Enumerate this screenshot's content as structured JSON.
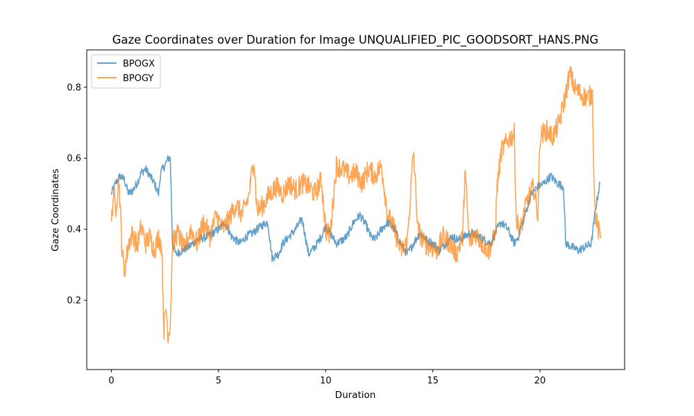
{
  "chart_data": {
    "type": "line",
    "title": "Gaze Coordinates over Duration for Image UNQUALIFIED_PIC_GOODSORT_HANS.PNG",
    "xlabel": "Duration",
    "ylabel": "Gaze Coordinates",
    "xlim": [
      -1.15,
      23.95
    ],
    "ylim": [
      0.005,
      0.905
    ],
    "xticks": [
      0,
      5,
      10,
      15,
      20
    ],
    "yticks": [
      0.2,
      0.4,
      0.6,
      0.8
    ],
    "grid": false,
    "legend_position": "top-left",
    "series": [
      {
        "name": "BPOGX",
        "color": "#1f77b4",
        "opacity": 0.7,
        "points": [
          [
            0.0,
            0.5
          ],
          [
            0.2,
            0.53
          ],
          [
            0.4,
            0.55
          ],
          [
            0.6,
            0.54
          ],
          [
            0.8,
            0.5
          ],
          [
            1.0,
            0.51
          ],
          [
            1.2,
            0.53
          ],
          [
            1.4,
            0.56
          ],
          [
            1.6,
            0.57
          ],
          [
            1.8,
            0.55
          ],
          [
            2.0,
            0.53
          ],
          [
            2.2,
            0.5
          ],
          [
            2.3,
            0.56
          ],
          [
            2.5,
            0.58
          ],
          [
            2.65,
            0.6
          ],
          [
            2.75,
            0.6
          ],
          [
            2.85,
            0.36
          ],
          [
            3.0,
            0.33
          ],
          [
            3.3,
            0.34
          ],
          [
            3.6,
            0.35
          ],
          [
            4.0,
            0.37
          ],
          [
            4.5,
            0.38
          ],
          [
            5.0,
            0.4
          ],
          [
            5.3,
            0.42
          ],
          [
            5.6,
            0.38
          ],
          [
            6.0,
            0.36
          ],
          [
            6.3,
            0.38
          ],
          [
            6.6,
            0.39
          ],
          [
            7.0,
            0.41
          ],
          [
            7.3,
            0.42
          ],
          [
            7.5,
            0.32
          ],
          [
            7.8,
            0.33
          ],
          [
            8.0,
            0.36
          ],
          [
            8.3,
            0.38
          ],
          [
            8.6,
            0.4
          ],
          [
            8.9,
            0.43
          ],
          [
            9.2,
            0.33
          ],
          [
            9.5,
            0.35
          ],
          [
            9.8,
            0.38
          ],
          [
            10.0,
            0.41
          ],
          [
            10.2,
            0.39
          ],
          [
            10.5,
            0.36
          ],
          [
            10.8,
            0.37
          ],
          [
            11.0,
            0.38
          ],
          [
            11.3,
            0.42
          ],
          [
            11.6,
            0.44
          ],
          [
            11.9,
            0.41
          ],
          [
            12.1,
            0.38
          ],
          [
            12.3,
            0.37
          ],
          [
            12.6,
            0.4
          ],
          [
            12.9,
            0.42
          ],
          [
            13.2,
            0.4
          ],
          [
            13.5,
            0.36
          ],
          [
            13.8,
            0.33
          ],
          [
            14.1,
            0.36
          ],
          [
            14.4,
            0.39
          ],
          [
            14.7,
            0.37
          ],
          [
            15.0,
            0.36
          ],
          [
            15.3,
            0.34
          ],
          [
            15.6,
            0.36
          ],
          [
            15.9,
            0.38
          ],
          [
            16.2,
            0.37
          ],
          [
            16.5,
            0.38
          ],
          [
            16.8,
            0.39
          ],
          [
            17.1,
            0.38
          ],
          [
            17.4,
            0.37
          ],
          [
            17.7,
            0.36
          ],
          [
            18.0,
            0.4
          ],
          [
            18.2,
            0.42
          ],
          [
            18.5,
            0.4
          ],
          [
            18.8,
            0.36
          ],
          [
            19.0,
            0.38
          ],
          [
            19.3,
            0.44
          ],
          [
            19.6,
            0.5
          ],
          [
            19.9,
            0.52
          ],
          [
            20.2,
            0.53
          ],
          [
            20.5,
            0.55
          ],
          [
            20.8,
            0.53
          ],
          [
            21.1,
            0.52
          ],
          [
            21.2,
            0.36
          ],
          [
            21.5,
            0.35
          ],
          [
            21.8,
            0.34
          ],
          [
            22.1,
            0.35
          ],
          [
            22.4,
            0.36
          ],
          [
            22.6,
            0.46
          ],
          [
            22.8,
            0.53
          ]
        ]
      },
      {
        "name": "BPOGY",
        "color": "#ff7f0e",
        "opacity": 0.7,
        "points": [
          [
            0.0,
            0.42
          ],
          [
            0.1,
            0.5
          ],
          [
            0.2,
            0.46
          ],
          [
            0.35,
            0.54
          ],
          [
            0.5,
            0.34
          ],
          [
            0.6,
            0.28
          ],
          [
            0.8,
            0.36
          ],
          [
            1.0,
            0.39
          ],
          [
            1.2,
            0.35
          ],
          [
            1.4,
            0.41
          ],
          [
            1.6,
            0.36
          ],
          [
            1.8,
            0.38
          ],
          [
            2.0,
            0.34
          ],
          [
            2.2,
            0.38
          ],
          [
            2.35,
            0.35
          ],
          [
            2.45,
            0.12
          ],
          [
            2.55,
            0.18
          ],
          [
            2.65,
            0.1
          ],
          [
            2.75,
            0.14
          ],
          [
            2.85,
            0.36
          ],
          [
            3.1,
            0.39
          ],
          [
            3.4,
            0.34
          ],
          [
            3.7,
            0.4
          ],
          [
            4.0,
            0.36
          ],
          [
            4.3,
            0.42
          ],
          [
            4.6,
            0.38
          ],
          [
            4.9,
            0.44
          ],
          [
            5.2,
            0.4
          ],
          [
            5.5,
            0.43
          ],
          [
            5.8,
            0.47
          ],
          [
            6.1,
            0.44
          ],
          [
            6.4,
            0.49
          ],
          [
            6.65,
            0.6
          ],
          [
            6.8,
            0.45
          ],
          [
            7.1,
            0.47
          ],
          [
            7.4,
            0.5
          ],
          [
            7.7,
            0.52
          ],
          [
            8.0,
            0.5
          ],
          [
            8.3,
            0.53
          ],
          [
            8.6,
            0.51
          ],
          [
            8.9,
            0.53
          ],
          [
            9.2,
            0.52
          ],
          [
            9.5,
            0.5
          ],
          [
            9.8,
            0.54
          ],
          [
            10.0,
            0.4
          ],
          [
            10.2,
            0.38
          ],
          [
            10.5,
            0.58
          ],
          [
            10.8,
            0.57
          ],
          [
            11.1,
            0.55
          ],
          [
            11.4,
            0.56
          ],
          [
            11.7,
            0.53
          ],
          [
            12.0,
            0.57
          ],
          [
            12.3,
            0.55
          ],
          [
            12.6,
            0.58
          ],
          [
            12.9,
            0.44
          ],
          [
            13.2,
            0.4
          ],
          [
            13.5,
            0.34
          ],
          [
            13.8,
            0.36
          ],
          [
            14.1,
            0.62
          ],
          [
            14.3,
            0.4
          ],
          [
            14.6,
            0.36
          ],
          [
            14.9,
            0.35
          ],
          [
            15.2,
            0.34
          ],
          [
            15.5,
            0.38
          ],
          [
            15.8,
            0.36
          ],
          [
            16.1,
            0.33
          ],
          [
            16.4,
            0.38
          ],
          [
            16.5,
            0.57
          ],
          [
            16.7,
            0.36
          ],
          [
            17.0,
            0.39
          ],
          [
            17.3,
            0.36
          ],
          [
            17.6,
            0.34
          ],
          [
            17.9,
            0.38
          ],
          [
            18.0,
            0.52
          ],
          [
            18.2,
            0.62
          ],
          [
            18.5,
            0.65
          ],
          [
            18.8,
            0.67
          ],
          [
            18.9,
            0.42
          ],
          [
            19.1,
            0.4
          ],
          [
            19.4,
            0.48
          ],
          [
            19.7,
            0.52
          ],
          [
            19.9,
            0.44
          ],
          [
            20.0,
            0.66
          ],
          [
            20.3,
            0.68
          ],
          [
            20.6,
            0.66
          ],
          [
            20.9,
            0.7
          ],
          [
            21.2,
            0.78
          ],
          [
            21.4,
            0.84
          ],
          [
            21.6,
            0.8
          ],
          [
            21.9,
            0.78
          ],
          [
            22.2,
            0.77
          ],
          [
            22.45,
            0.78
          ],
          [
            22.55,
            0.46
          ],
          [
            22.7,
            0.4
          ],
          [
            22.85,
            0.38
          ]
        ]
      }
    ]
  }
}
